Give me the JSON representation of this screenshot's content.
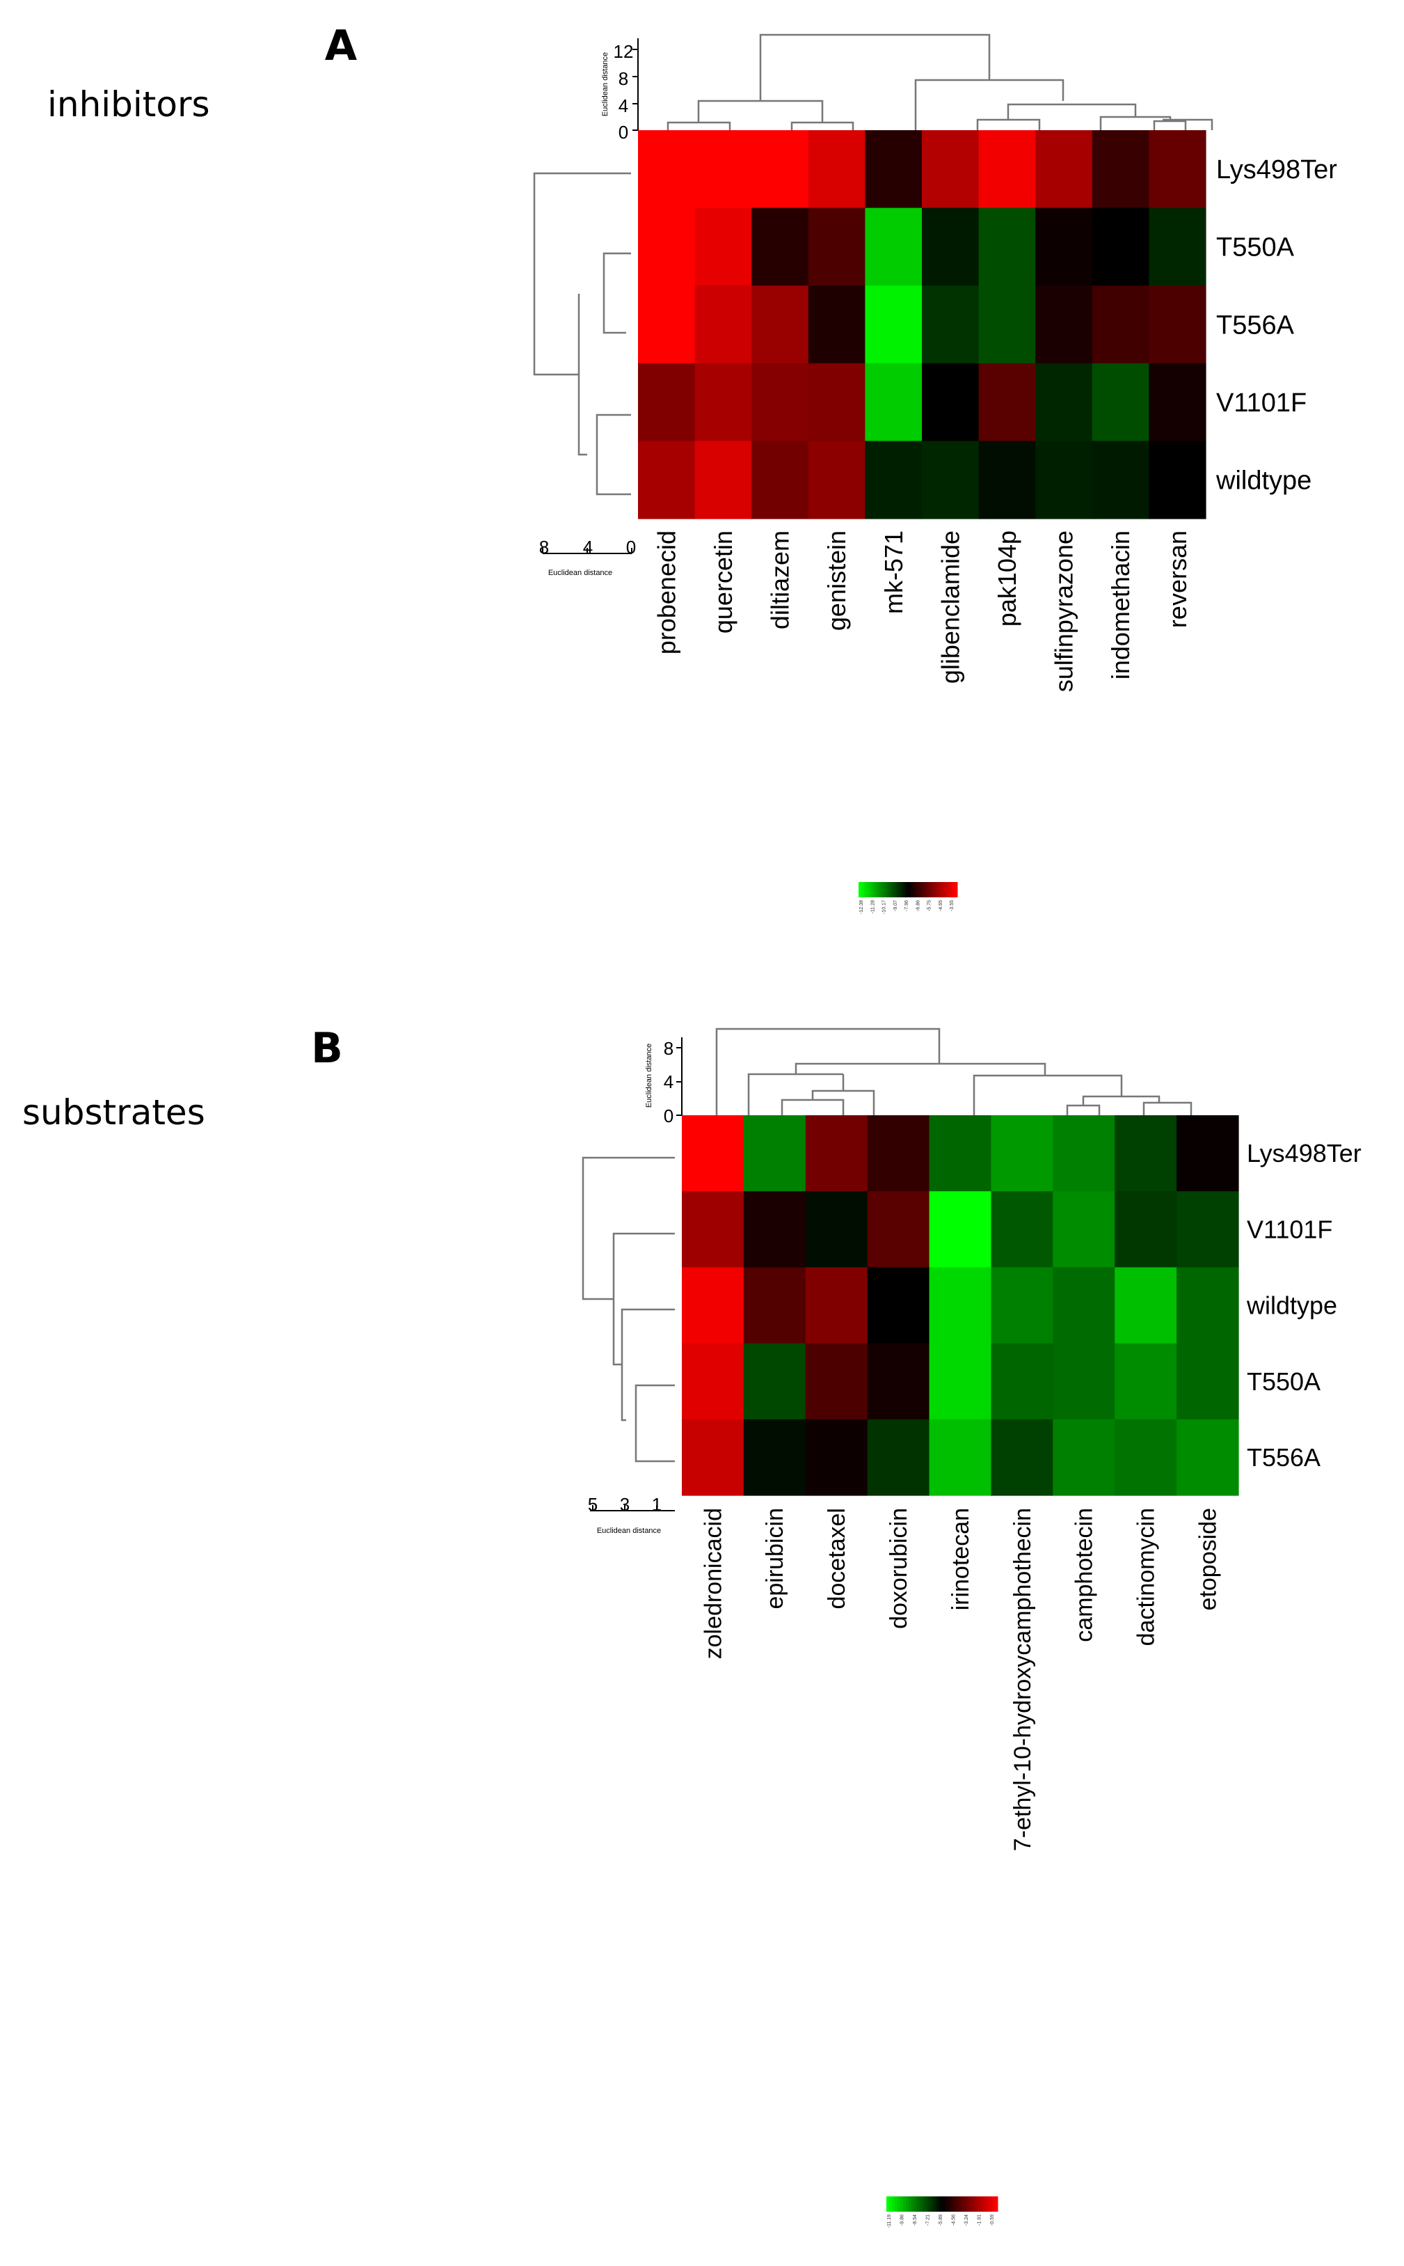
{
  "chart_data": [
    {
      "type": "heatmap",
      "panel_label": "A",
      "side_label": "inhibitors",
      "columns": [
        "probenecid",
        "quercetin",
        "diltiazem",
        "genistein",
        "mk-571",
        "glibenclamide",
        "pak104p",
        "sulfinpyrazone",
        "indomethacin",
        "reversan"
      ],
      "rows": [
        "Lys498Ter",
        "T550A",
        "T556A",
        "V1101F",
        "wildtype"
      ],
      "values": [
        [
          1.0,
          1.0,
          1.0,
          0.85,
          0.15,
          0.7,
          0.95,
          0.65,
          0.22,
          0.4
        ],
        [
          1.0,
          0.9,
          0.15,
          0.3,
          -0.8,
          -0.1,
          -0.3,
          0.05,
          0.0,
          -0.15
        ],
        [
          1.0,
          0.8,
          0.6,
          0.12,
          -0.95,
          -0.2,
          -0.3,
          0.1,
          0.25,
          0.3
        ],
        [
          0.5,
          0.65,
          0.52,
          0.5,
          -0.8,
          0.0,
          0.35,
          -0.15,
          -0.3,
          0.08
        ],
        [
          0.65,
          0.85,
          0.45,
          0.55,
          -0.12,
          -0.15,
          -0.05,
          -0.12,
          -0.1,
          0.0
        ]
      ],
      "col_dendrogram_axis": {
        "label": "Euclidean distance",
        "ticks": [
          "12",
          "8",
          "4",
          "0"
        ]
      },
      "row_dendrogram_axis": {
        "label": "Euclidean distance",
        "ticks": [
          "8",
          "4",
          "0"
        ]
      },
      "legend_ticks": [
        "-12.38",
        "-11.28",
        "-10.17",
        "-9.07",
        "-7.96",
        "-6.86",
        "-5.75",
        "-4.65",
        "-3.55"
      ],
      "colors": {
        "low": "#00ff00",
        "mid": "#000000",
        "high": "#ff0000"
      }
    },
    {
      "type": "heatmap",
      "panel_label": "B",
      "side_label": "substrates",
      "columns": [
        "zoledronicacid",
        "epirubicin",
        "docetaxel",
        "doxorubicin",
        "irinotecan",
        "7-ethyl-10-hydroxycamphothecin",
        "camphotecin",
        "dactinomycin",
        "etoposide"
      ],
      "rows": [
        "Lys498Ter",
        "V1101F",
        "wildtype",
        "T550A",
        "T556A"
      ],
      "values": [
        [
          1.0,
          -0.5,
          0.45,
          0.2,
          -0.4,
          -0.6,
          -0.5,
          -0.25,
          0.03
        ],
        [
          0.62,
          0.1,
          -0.05,
          0.35,
          -1.0,
          -0.35,
          -0.55,
          -0.22,
          -0.25
        ],
        [
          0.95,
          0.32,
          0.5,
          0.0,
          -0.85,
          -0.5,
          -0.42,
          -0.75,
          -0.4
        ],
        [
          0.88,
          -0.28,
          0.3,
          0.08,
          -0.85,
          -0.4,
          -0.42,
          -0.55,
          -0.4
        ],
        [
          0.78,
          -0.05,
          0.05,
          -0.2,
          -0.75,
          -0.25,
          -0.5,
          -0.45,
          -0.55
        ]
      ],
      "col_dendrogram_axis": {
        "label": "Euclidean distance",
        "ticks": [
          "8",
          "4",
          "0"
        ]
      },
      "row_dendrogram_axis": {
        "label": "Euclidean distance",
        "ticks": [
          "5",
          "3",
          "1"
        ]
      },
      "legend_ticks": [
        "-11.19",
        "-9.86",
        "-8.54",
        "-7.21",
        "-5.89",
        "-4.56",
        "-3.24",
        "-1.91",
        "-0.59"
      ],
      "colors": {
        "low": "#00ff00",
        "mid": "#000000",
        "high": "#ff0000"
      }
    }
  ]
}
